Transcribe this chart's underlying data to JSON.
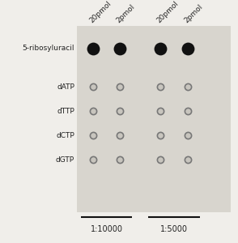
{
  "fig_background": "#f0eeea",
  "panel_background": "#d8d5ce",
  "row_labels": [
    "5-ribosyluracil",
    "dATP",
    "dTTP",
    "dCTP",
    "dGTP"
  ],
  "col_labels": [
    "20pmol",
    "2pmol",
    "20pmol",
    "2pmol"
  ],
  "filled_row": 0,
  "filled_dot_color": "#111111",
  "filled_dot_size": 130,
  "empty_dot_facecolor": "#c8c5be",
  "empty_dot_edgecolor": "#777777",
  "empty_dot_size": 35,
  "empty_dot_linewidth": 1.2,
  "col_label_fontsize": 6.5,
  "row_label_fontsize": 6.5,
  "group1_label": "1:10000",
  "group2_label": "1:5000",
  "group_label_fontsize": 7,
  "text_color": "#222222"
}
